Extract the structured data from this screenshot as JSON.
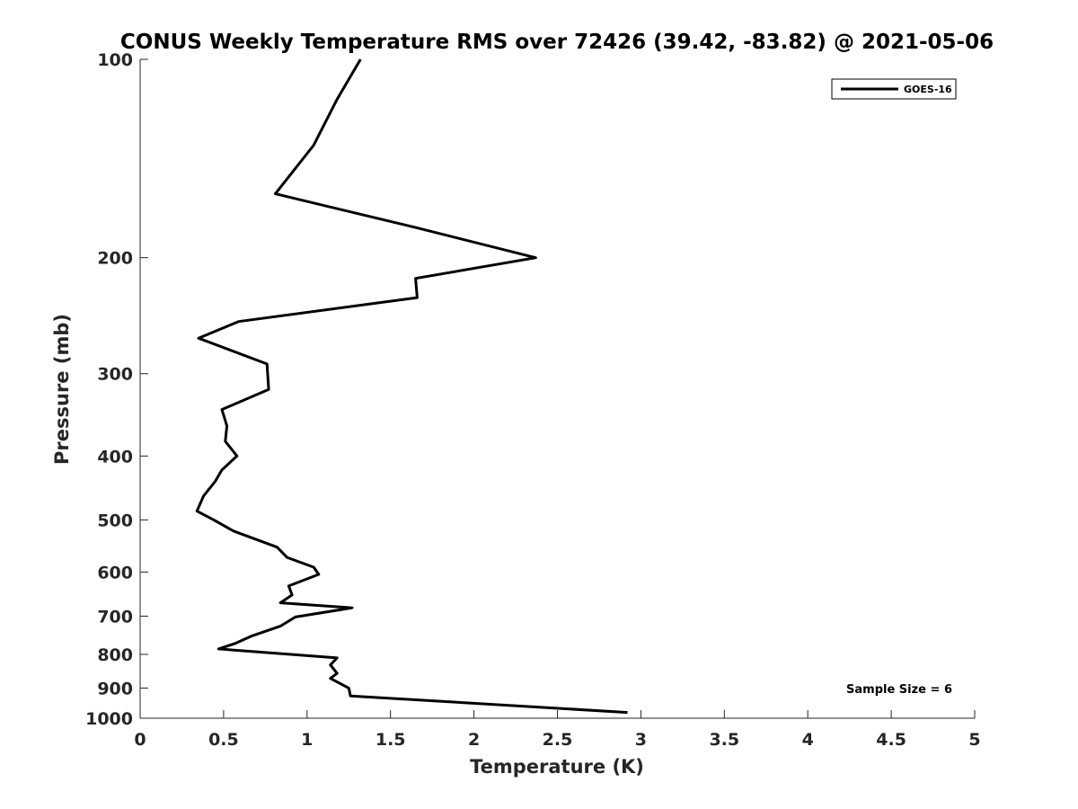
{
  "chart_data": {
    "type": "line",
    "title": "CONUS Weekly Temperature RMS over 72426 (39.42, -83.82) @ 2021-05-06",
    "xlabel": "Temperature (K)",
    "ylabel": "Pressure (mb)",
    "xlim": [
      0,
      5
    ],
    "ylim": [
      1000,
      100
    ],
    "yscale": "log",
    "y_reversed": true,
    "grid": false,
    "legend_position": "top-right",
    "x_ticks": [
      "0",
      "0.5",
      "1",
      "1.5",
      "2",
      "2.5",
      "3",
      "3.5",
      "4",
      "4.5",
      "5"
    ],
    "y_ticks": [
      "100",
      "200",
      "300",
      "400",
      "500",
      "600",
      "700",
      "800",
      "900",
      "1000"
    ],
    "series": [
      {
        "name": "GOES-16",
        "color": "#000000",
        "points": [
          [
            1.32,
            100
          ],
          [
            1.18,
            115
          ],
          [
            1.04,
            135
          ],
          [
            0.81,
            160
          ],
          [
            1.65,
            180
          ],
          [
            2.37,
            200
          ],
          [
            1.65,
            215
          ],
          [
            1.66,
            230
          ],
          [
            0.59,
            250
          ],
          [
            0.35,
            265
          ],
          [
            0.76,
            290
          ],
          [
            0.77,
            317
          ],
          [
            0.49,
            340
          ],
          [
            0.52,
            360
          ],
          [
            0.51,
            380
          ],
          [
            0.58,
            400
          ],
          [
            0.49,
            420
          ],
          [
            0.45,
            437
          ],
          [
            0.38,
            460
          ],
          [
            0.34,
            485
          ],
          [
            0.44,
            500
          ],
          [
            0.56,
            520
          ],
          [
            0.82,
            550
          ],
          [
            0.88,
            570
          ],
          [
            1.04,
            590
          ],
          [
            1.07,
            605
          ],
          [
            0.89,
            630
          ],
          [
            0.91,
            650
          ],
          [
            0.84,
            668
          ],
          [
            1.27,
            680
          ],
          [
            0.93,
            702
          ],
          [
            0.84,
            725
          ],
          [
            0.67,
            750
          ],
          [
            0.57,
            770
          ],
          [
            0.47,
            785
          ],
          [
            1.18,
            810
          ],
          [
            1.14,
            830
          ],
          [
            1.18,
            855
          ],
          [
            1.14,
            870
          ],
          [
            1.25,
            900
          ],
          [
            1.26,
            925
          ],
          [
            2.92,
            980
          ]
        ]
      }
    ],
    "annotation": "Sample Size = 6"
  }
}
